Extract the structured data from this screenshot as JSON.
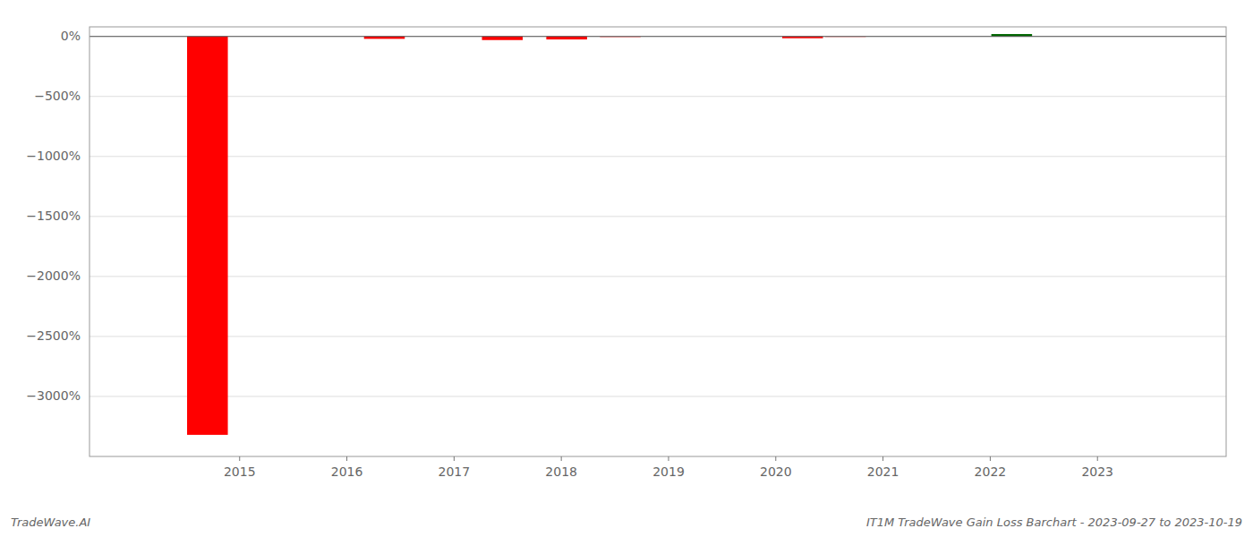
{
  "chart_data": {
    "type": "bar",
    "title": "IT1M TradeWave Gain Loss Barchart - 2023-09-27 to 2023-10-19",
    "annotations": [
      "TradeWave.AI"
    ],
    "x": [
      2014.7,
      2016.35,
      2017.45,
      2018.05,
      2018.55,
      2020.25,
      2020.65,
      2022.2
    ],
    "values": [
      -3320,
      -20,
      -30,
      -25,
      -10,
      -15,
      -7,
      20
    ],
    "colors": [
      "#ff0000",
      "#ff0000",
      "#ff0000",
      "#ff0000",
      "#ffaaaa",
      "#ff0000",
      "#ffaaaa",
      "#006600"
    ],
    "xlim": [
      2013.6,
      2024.2
    ],
    "ylim": [
      -3500,
      80
    ],
    "xticks": [
      2015,
      2016,
      2017,
      2018,
      2019,
      2020,
      2021,
      2022,
      2023
    ],
    "yticks": [
      {
        "value": 0,
        "label": "0%"
      },
      {
        "value": -500,
        "label": "−500%"
      },
      {
        "value": -1000,
        "label": "−1000%"
      },
      {
        "value": -1500,
        "label": "−1500%"
      },
      {
        "value": -2000,
        "label": "−2000%"
      },
      {
        "value": -2500,
        "label": "−2500%"
      },
      {
        "value": -3000,
        "label": "−3000%"
      }
    ],
    "grid": true
  }
}
